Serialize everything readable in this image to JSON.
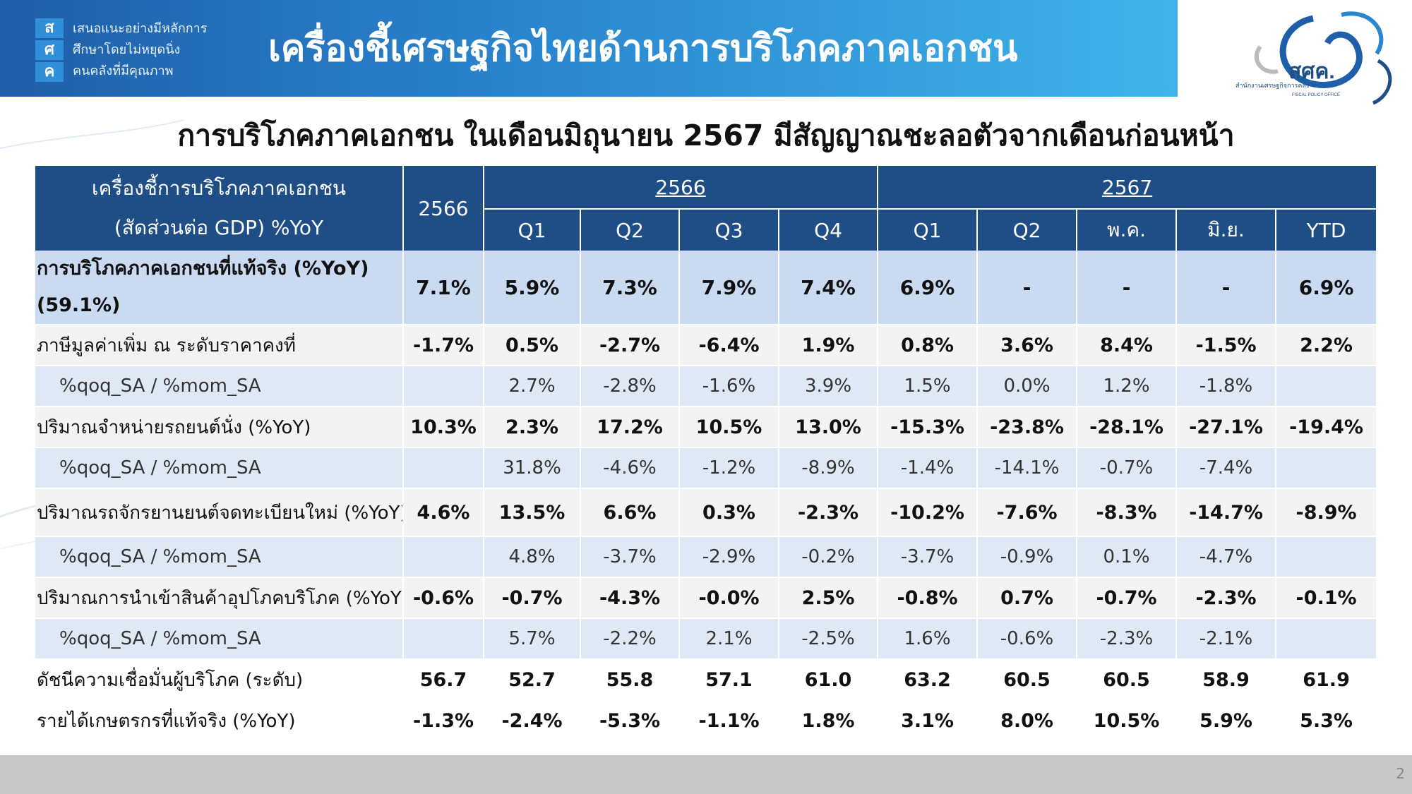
{
  "header": {
    "logo_letters": [
      "ส",
      "ศ",
      "ค"
    ],
    "motto": [
      "เสนอแนะอย่างมีหลักการ",
      "ศึกษาโดยไม่หยุดนิ่ง",
      "คนคลังที่มีคุณภาพ"
    ],
    "title": "เครื่องชี้เศรษฐกิจไทยด้านการบริโภคภาคเอกชน",
    "agency_logo_text": "สศค.",
    "agency_logo_sub": "สำนักงานเศรษฐกิจการคลัง",
    "agency_logo_en": "FISCAL POLICY OFFICE"
  },
  "subtitle": "การบริโภคภาคเอกชน ในเดือนมิถุนายน 2567 มีสัญญาณชะลอตัวจากเดือนก่อนหน้า",
  "table": {
    "corner_line1": "เครื่องชี้การบริโภคภาคเอกชน",
    "corner_line2": "(สัดส่วนต่อ GDP) %YoY",
    "annual_header": "2566",
    "group_2566": "2566",
    "group_2567": "2567",
    "sub_headers": [
      "Q1",
      "Q2",
      "Q3",
      "Q4",
      "Q1",
      "Q2",
      "พ.ค.",
      "มิ.ย.",
      "YTD"
    ],
    "rows": [
      {
        "label": "การบริโภคภาคเอกชนที่แท้จริง (%YoY) (59.1%)",
        "values": [
          "7.1%",
          "5.9%",
          "7.3%",
          "7.9%",
          "7.4%",
          "6.9%",
          "-",
          "-",
          "-",
          "6.9%"
        ]
      },
      {
        "label": "ภาษีมูลค่าเพิ่ม ณ ระดับราคาคงที่",
        "values": [
          "-1.7%",
          "0.5%",
          "-2.7%",
          "-6.4%",
          "1.9%",
          "0.8%",
          "3.6%",
          "8.4%",
          "-1.5%",
          "2.2%"
        ]
      },
      {
        "label": "%qoq_SA / %mom_SA",
        "values": [
          "",
          "2.7%",
          "-2.8%",
          "-1.6%",
          "3.9%",
          "1.5%",
          "0.0%",
          "1.2%",
          "-1.8%",
          ""
        ]
      },
      {
        "label": "ปริมาณจำหน่ายรถยนต์นั่ง (%YoY)",
        "values": [
          "10.3%",
          "2.3%",
          "17.2%",
          "10.5%",
          "13.0%",
          "-15.3%",
          "-23.8%",
          "-28.1%",
          "-27.1%",
          "-19.4%"
        ]
      },
      {
        "label": "%qoq_SA / %mom_SA",
        "values": [
          "",
          "31.8%",
          "-4.6%",
          "-1.2%",
          "-8.9%",
          "-1.4%",
          "-14.1%",
          "-0.7%",
          "-7.4%",
          ""
        ]
      },
      {
        "label": "ปริมาณรถจักรยานยนต์จดทะเบียนใหม่ (%YoY)",
        "values": [
          "4.6%",
          "13.5%",
          "6.6%",
          "0.3%",
          "-2.3%",
          "-10.2%",
          "-7.6%",
          "-8.3%",
          "-14.7%",
          "-8.9%"
        ]
      },
      {
        "label": "%qoq_SA / %mom_SA",
        "values": [
          "",
          "4.8%",
          "-3.7%",
          "-2.9%",
          "-0.2%",
          "-3.7%",
          "-0.9%",
          "0.1%",
          "-4.7%",
          ""
        ]
      },
      {
        "label": "ปริมาณการนำเข้าสินค้าอุปโภคบริโภค (%YoY)",
        "values": [
          "-0.6%",
          "-0.7%",
          "-4.3%",
          "-0.0%",
          "2.5%",
          "-0.8%",
          "0.7%",
          "-0.7%",
          "-2.3%",
          "-0.1%"
        ]
      },
      {
        "label": "%qoq_SA / %mom_SA",
        "values": [
          "",
          "5.7%",
          "-2.2%",
          "2.1%",
          "-2.5%",
          "1.6%",
          "-0.6%",
          "-2.3%",
          "-2.1%",
          ""
        ]
      },
      {
        "label": "ดัชนีความเชื่อมั่นผู้บริโภค (ระดับ)",
        "values": [
          "56.7",
          "52.7",
          "55.8",
          "57.1",
          "61.0",
          "63.2",
          "60.5",
          "60.5",
          "58.9",
          "61.9"
        ]
      },
      {
        "label": "รายได้เกษตรกรที่แท้จริง (%YoY)",
        "values": [
          "-1.3%",
          "-2.4%",
          "-5.3%",
          "-1.1%",
          "1.8%",
          "3.1%",
          "8.0%",
          "10.5%",
          "5.9%",
          "5.3%"
        ]
      }
    ]
  },
  "footer": {
    "page_number": "2"
  },
  "colors": {
    "header_blue": "#1f4e87",
    "highlight_row": "#c9daf1",
    "sub_row": "#dfe9f6"
  }
}
